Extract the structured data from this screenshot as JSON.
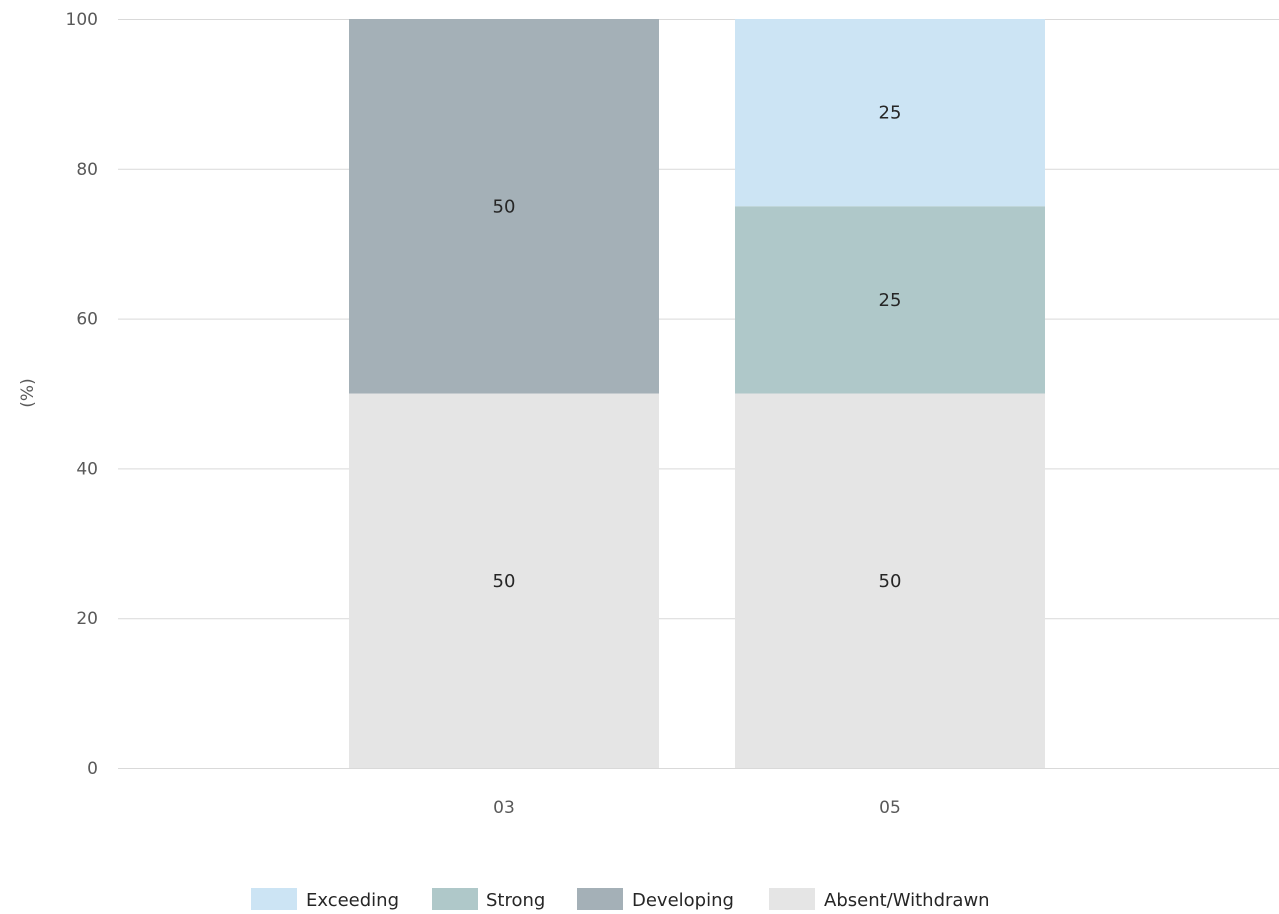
{
  "chart_data": {
    "type": "bar",
    "stacked": true,
    "categories": [
      "03",
      "05"
    ],
    "series": [
      {
        "name": "Absent/Withdrawn",
        "values": [
          50,
          50
        ],
        "color": "#e5e5e5"
      },
      {
        "name": "Developing",
        "values": [
          50,
          0
        ],
        "color": "#a4b0b7"
      },
      {
        "name": "Strong",
        "values": [
          0,
          25
        ],
        "color": "#afc8c9"
      },
      {
        "name": "Exceeding",
        "values": [
          0,
          25
        ],
        "color": "#cce4f4"
      }
    ],
    "legend_order": [
      "Exceeding",
      "Strong",
      "Developing",
      "Absent/Withdrawn"
    ],
    "title": "",
    "xlabel": "",
    "ylabel": "(%)",
    "ylim": [
      0,
      100
    ],
    "yticks": [
      0,
      20,
      40,
      60,
      80,
      100
    ],
    "grid": true,
    "legend_position": "bottom"
  }
}
